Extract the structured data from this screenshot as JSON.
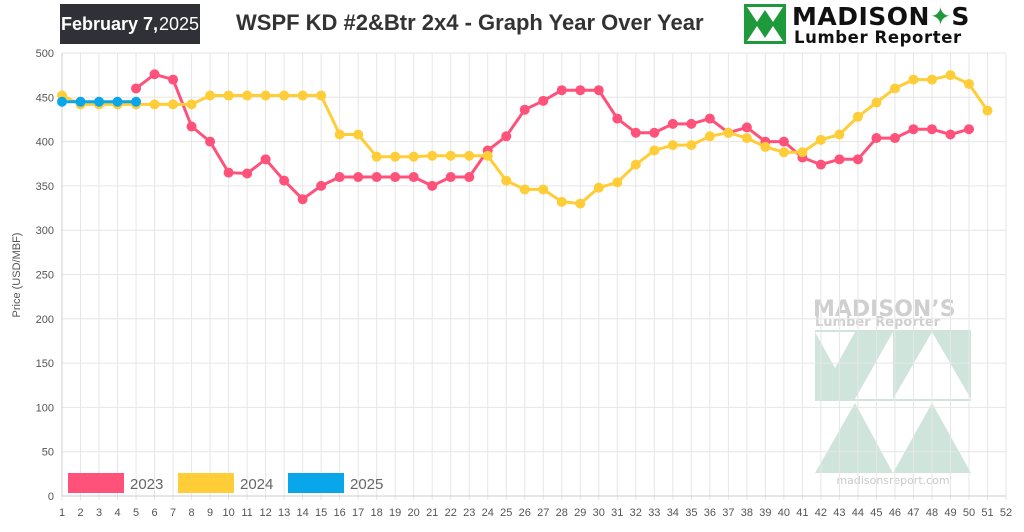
{
  "header": {
    "date_month_day": "February 7,",
    "date_year": "2025",
    "title": "WSPF KD #2&Btr 2x4 - Graph Year Over Year"
  },
  "logo": {
    "line1_a": "MADISON",
    "line1_b": "S",
    "line2": "Lumber Reporter"
  },
  "watermark": {
    "line1_a": "MADISON",
    "line1_b": "S",
    "line2": "Lumber Reporter",
    "url": "madisonsreport.com"
  },
  "colors": {
    "s2023": "#ff527b",
    "s2024": "#ffcd37",
    "s2025": "#0aa6ea",
    "grid": "#e6e6e6",
    "logo_green": "#1f9a3a",
    "watermark_green": "#cfe5dc"
  },
  "chart_data": {
    "type": "line",
    "title": "WSPF KD #2&Btr 2x4 - Graph Year Over Year",
    "xlabel": "",
    "ylabel": "Price (USD/MBF)",
    "xlim": [
      1,
      52
    ],
    "ylim": [
      0,
      500
    ],
    "y_ticks": [
      0,
      50,
      100,
      150,
      200,
      250,
      300,
      350,
      400,
      450,
      500
    ],
    "x_ticks": [
      1,
      2,
      3,
      4,
      5,
      6,
      7,
      8,
      9,
      10,
      11,
      12,
      13,
      14,
      15,
      16,
      17,
      18,
      19,
      20,
      21,
      22,
      23,
      24,
      25,
      26,
      27,
      28,
      29,
      30,
      31,
      32,
      33,
      34,
      35,
      36,
      37,
      38,
      39,
      40,
      41,
      42,
      43,
      44,
      45,
      46,
      47,
      48,
      49,
      50,
      51,
      52
    ],
    "grid": true,
    "legend_position": "bottom-left",
    "series": [
      {
        "name": "2023",
        "x": [
          5,
          6,
          7,
          8,
          9,
          10,
          11,
          12,
          13,
          14,
          15,
          16,
          17,
          18,
          19,
          20,
          21,
          22,
          23,
          24,
          25,
          26,
          27,
          28,
          29,
          30,
          31,
          32,
          33,
          34,
          35,
          36,
          37,
          38,
          39,
          40,
          41,
          42,
          43,
          44,
          45,
          46,
          47,
          48,
          49,
          50
        ],
        "values": [
          460,
          476,
          470,
          417,
          400,
          365,
          364,
          380,
          356,
          335,
          350,
          360,
          360,
          360,
          360,
          360,
          350,
          360,
          360,
          390,
          406,
          436,
          446,
          458,
          458,
          458,
          426,
          410,
          410,
          420,
          420,
          426,
          410,
          416,
          400,
          400,
          382,
          374,
          380,
          380,
          404,
          404,
          414,
          414,
          408,
          414
        ]
      },
      {
        "name": "2024",
        "x": [
          1,
          2,
          3,
          4,
          5,
          6,
          7,
          8,
          9,
          10,
          11,
          12,
          13,
          14,
          15,
          16,
          17,
          18,
          19,
          20,
          21,
          22,
          23,
          24,
          25,
          26,
          27,
          28,
          29,
          30,
          31,
          32,
          33,
          34,
          35,
          36,
          37,
          38,
          39,
          40,
          41,
          42,
          43,
          44,
          45,
          46,
          47,
          48,
          49,
          50,
          51
        ],
        "values": [
          452,
          442,
          442,
          442,
          442,
          442,
          442,
          442,
          452,
          452,
          452,
          452,
          452,
          452,
          452,
          408,
          408,
          383,
          383,
          383,
          384,
          384,
          384,
          384,
          356,
          346,
          346,
          332,
          330,
          348,
          354,
          374,
          390,
          396,
          396,
          406,
          410,
          404,
          394,
          388,
          388,
          402,
          408,
          428,
          444,
          460,
          470,
          470,
          475,
          465,
          435
        ]
      },
      {
        "name": "2025",
        "x": [
          1,
          2,
          3,
          4,
          5
        ],
        "values": [
          445,
          445,
          445,
          445,
          445
        ]
      }
    ]
  }
}
